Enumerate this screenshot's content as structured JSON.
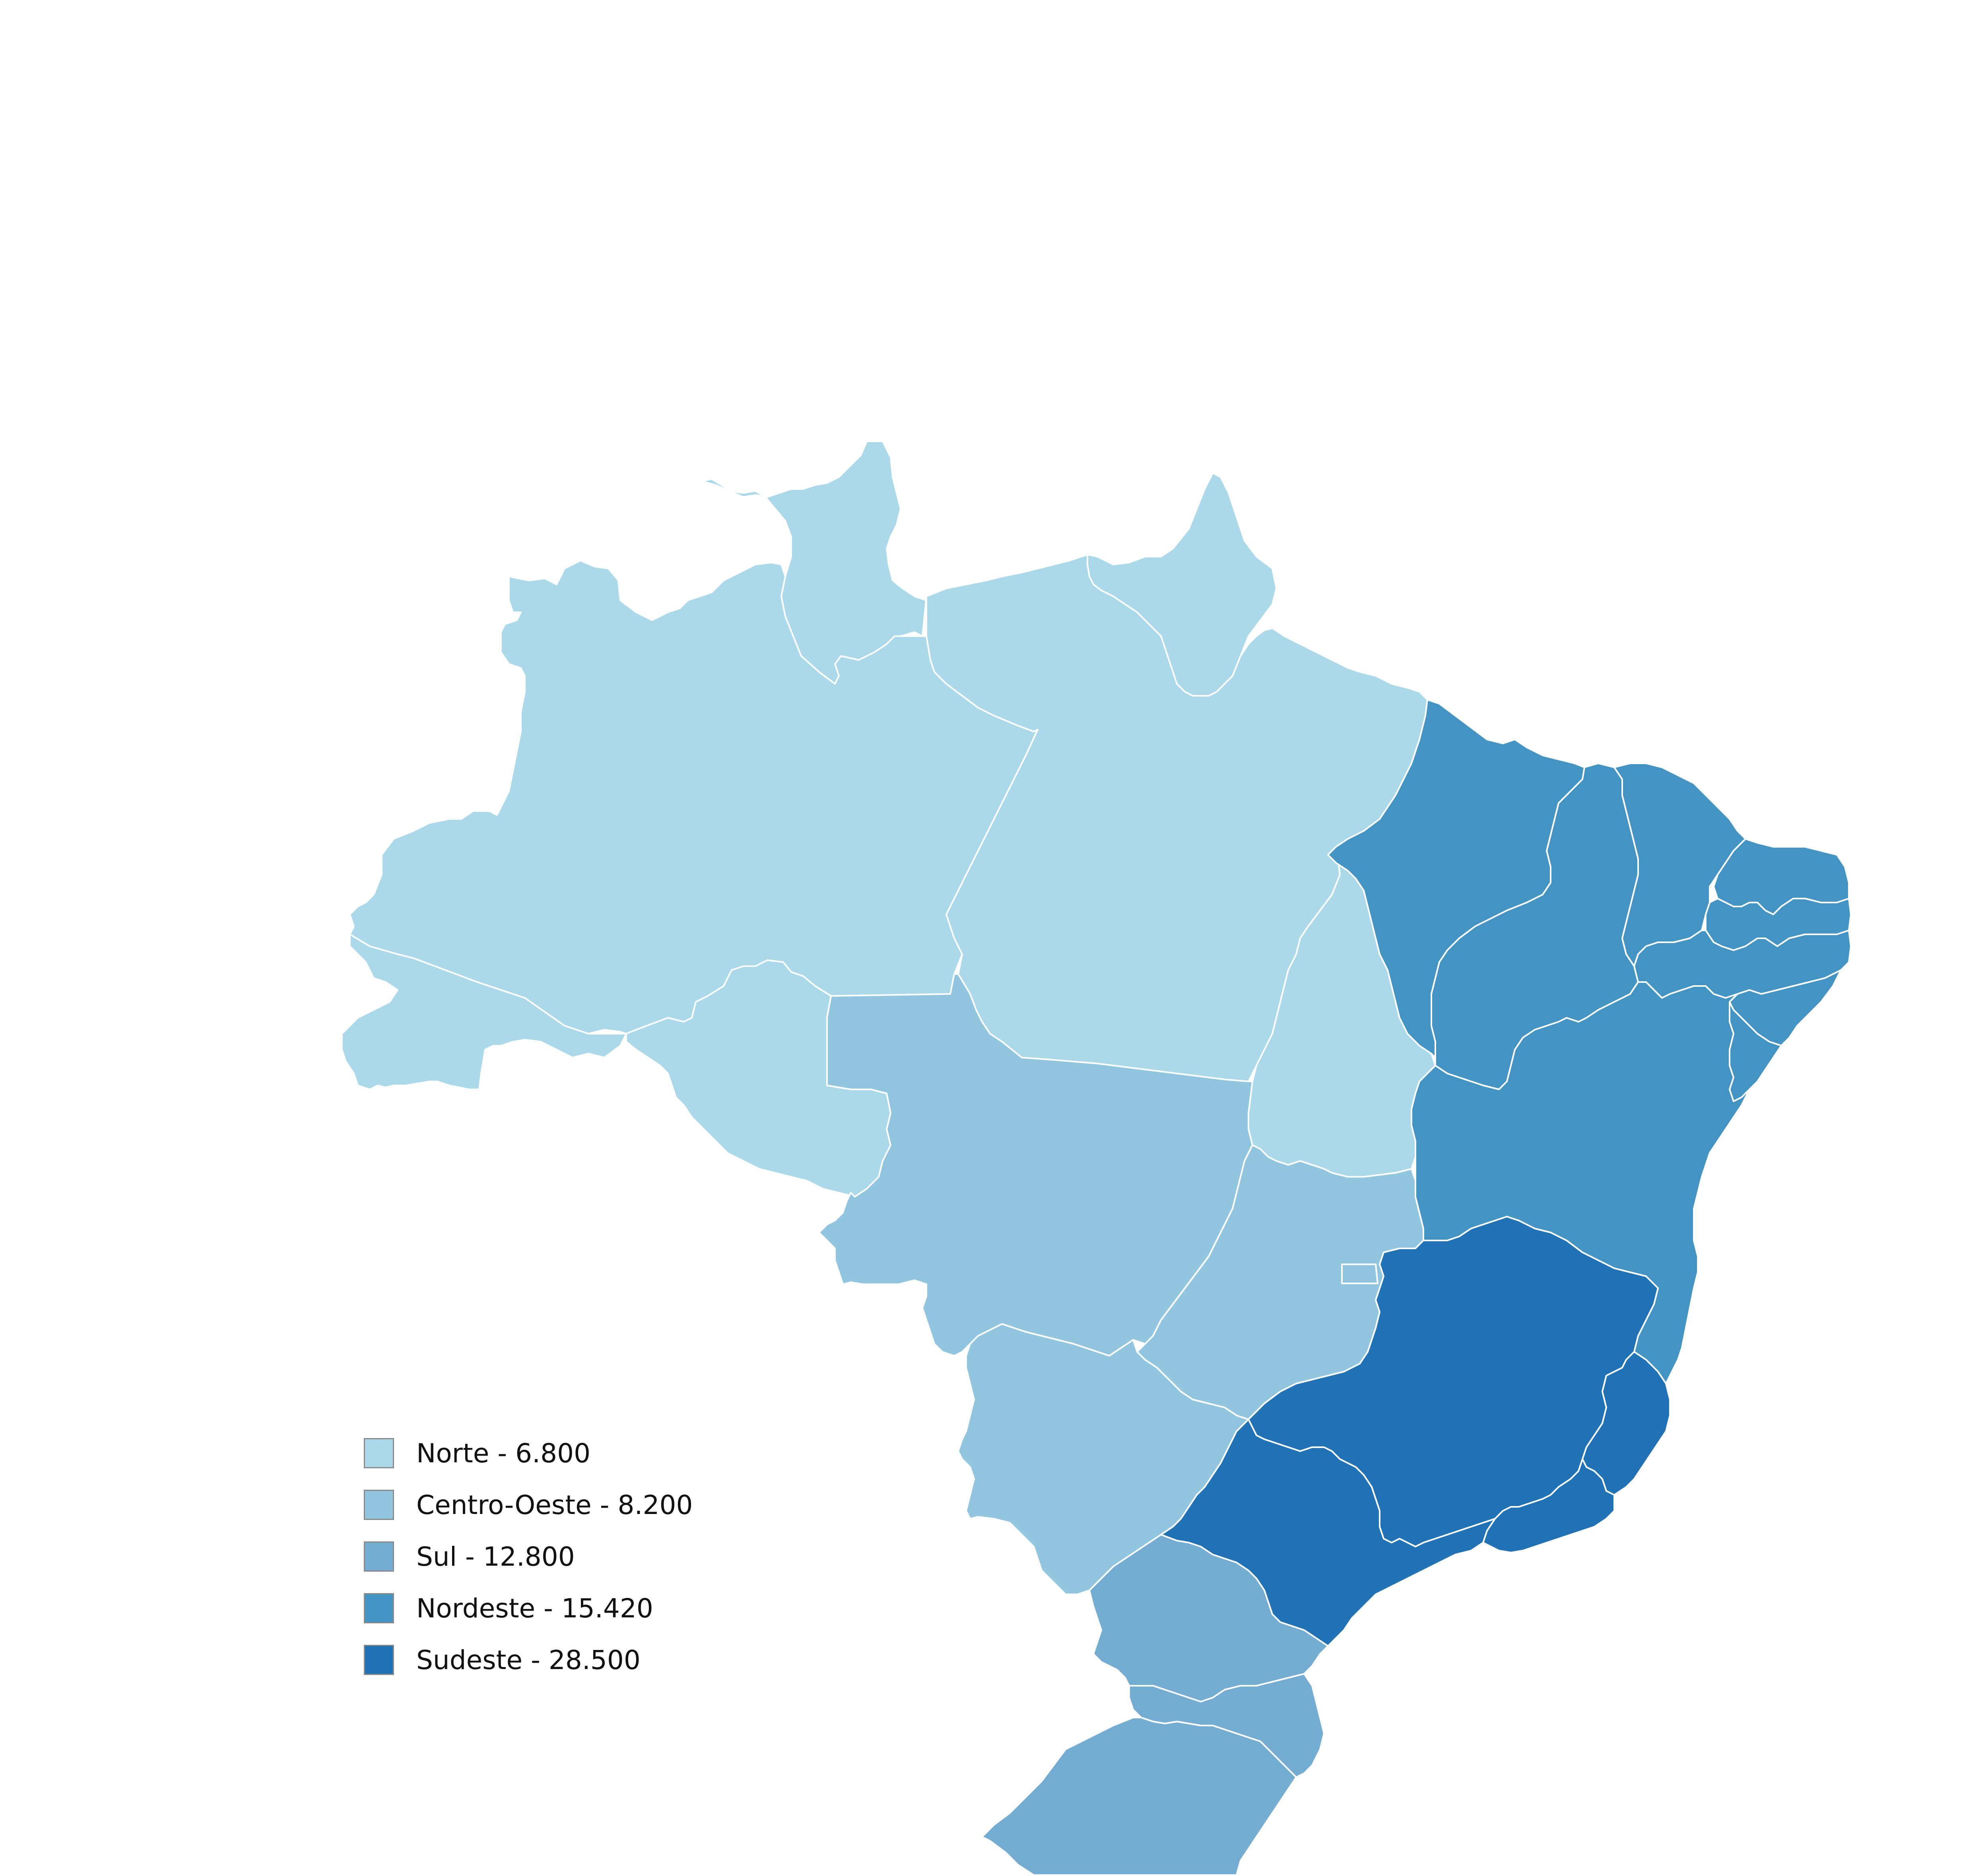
{
  "map": {
    "region_colors": {
      "Norte": "#abd9e9",
      "Centro-Oeste": "#92c5de",
      "Sul": "#74add1",
      "Nordeste": "#4393c3",
      "Sudeste": "#2171b5"
    },
    "regions": [
      {
        "name": "Norte",
        "value": 6800,
        "label": "Norte - 6.800",
        "color": "#abd9e9"
      },
      {
        "name": "Centro-Oeste",
        "value": 8200,
        "label": "Centro-Oeste - 8.200",
        "color": "#92c5de"
      },
      {
        "name": "Sul",
        "value": 12800,
        "label": "Sul - 12.800",
        "color": "#74add1"
      },
      {
        "name": "Nordeste",
        "value": 15420,
        "label": "Nordeste - 15.420",
        "color": "#4393c3"
      },
      {
        "name": "Sudeste",
        "value": 28500,
        "label": "Sudeste - 28.500",
        "color": "#2171b5"
      }
    ]
  }
}
